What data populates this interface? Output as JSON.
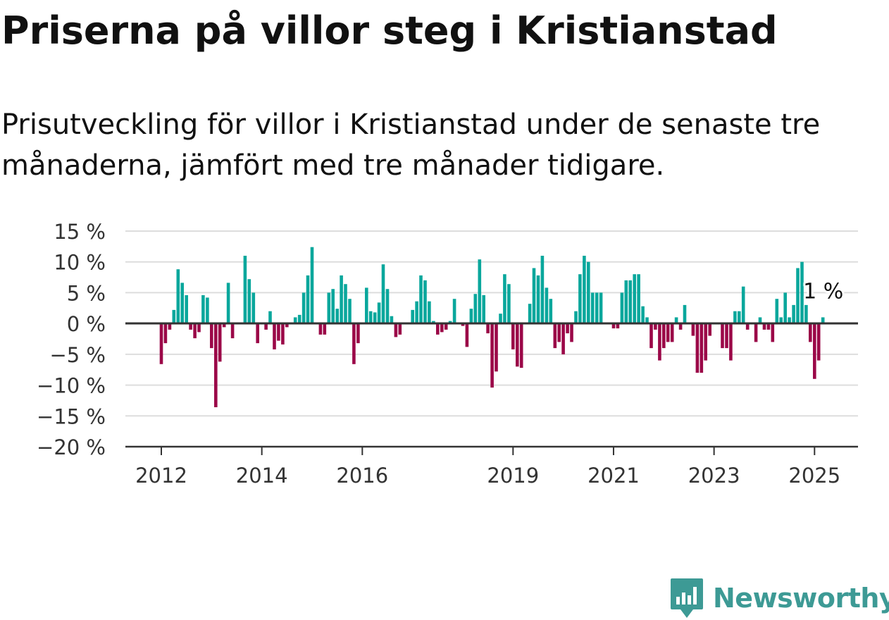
{
  "title": "Priserna på villor steg i Kristianstad",
  "subtitle": "Prisutveckling för villor i Kristianstad under de senaste tre månaderna, jämfört med tre månader tidigare.",
  "brand": "Newsworthy",
  "colors": {
    "positive": "#0aa79c",
    "negative": "#9b0848",
    "grid": "#dddddd",
    "axis": "#333333",
    "brand": "#3d9a95"
  },
  "chart_data": {
    "type": "bar",
    "ylim": [
      -20,
      15
    ],
    "yticks": [
      15,
      10,
      5,
      0,
      -5,
      -10,
      -15,
      -20
    ],
    "ytick_labels": [
      "15 %",
      "10 %",
      "5 %",
      "0 %",
      "−5 %",
      "−10 %",
      "−15 %",
      "−20 %"
    ],
    "xticks": [
      2012,
      2014,
      2016,
      2019,
      2021,
      2023,
      2025
    ],
    "start_month": "2012-01",
    "values": [
      -6.6,
      -3.2,
      -1.0,
      2.2,
      8.8,
      6.6,
      4.6,
      -1.0,
      -2.4,
      -1.4,
      4.6,
      4.2,
      -4.0,
      -13.6,
      -6.2,
      -0.6,
      6.6,
      -2.4,
      0.0,
      0.0,
      11.0,
      7.2,
      5.0,
      -3.2,
      0.0,
      -1.0,
      2.0,
      -4.2,
      -2.8,
      -3.4,
      -0.6,
      0.0,
      1.0,
      1.4,
      5.0,
      7.8,
      12.4,
      0.0,
      -1.8,
      -1.8,
      5.0,
      5.6,
      2.4,
      7.8,
      6.4,
      4.0,
      -6.6,
      -3.2,
      0.0,
      5.8,
      2.0,
      1.8,
      3.4,
      9.6,
      5.6,
      1.2,
      -2.2,
      -1.8,
      0.0,
      0.0,
      2.2,
      3.6,
      7.8,
      7.0,
      3.6,
      0.4,
      -1.8,
      -1.4,
      -1.0,
      0.4,
      4.0,
      0.0,
      -0.4,
      -3.8,
      2.4,
      4.8,
      10.4,
      4.6,
      -1.6,
      -10.4,
      -7.8,
      1.6,
      8.0,
      6.4,
      -4.2,
      -7.0,
      -7.2,
      0.0,
      3.2,
      9.0,
      7.8,
      11.0,
      5.8,
      4.0,
      -4.0,
      -3.0,
      -5.0,
      -1.6,
      -3.0,
      2.0,
      8.0,
      11.0,
      10.0,
      5.0,
      5.0,
      5.0,
      0.0,
      0.0,
      -0.8,
      -0.8,
      5.0,
      7.0,
      7.0,
      8.0,
      8.0,
      2.8,
      1.0,
      -4.0,
      -1.0,
      -6.0,
      -4.0,
      -3.0,
      -3.0,
      1.0,
      -1.0,
      3.0,
      0.0,
      -2.0,
      -8.0,
      -8.0,
      -6.0,
      -2.0,
      0.0,
      0.0,
      -4.0,
      -4.0,
      -6.0,
      2.0,
      2.0,
      6.0,
      -1.0,
      0.0,
      -3.0,
      1.0,
      -1.0,
      -1.0,
      -3.0,
      4.0,
      1.0,
      5.0,
      1.0,
      3.0,
      9.0,
      10.0,
      3.0,
      -3.0,
      -9.0,
      -6.0,
      1.0
    ],
    "annotation": {
      "text": "1 %",
      "month": "2025-03",
      "value": 1
    }
  }
}
